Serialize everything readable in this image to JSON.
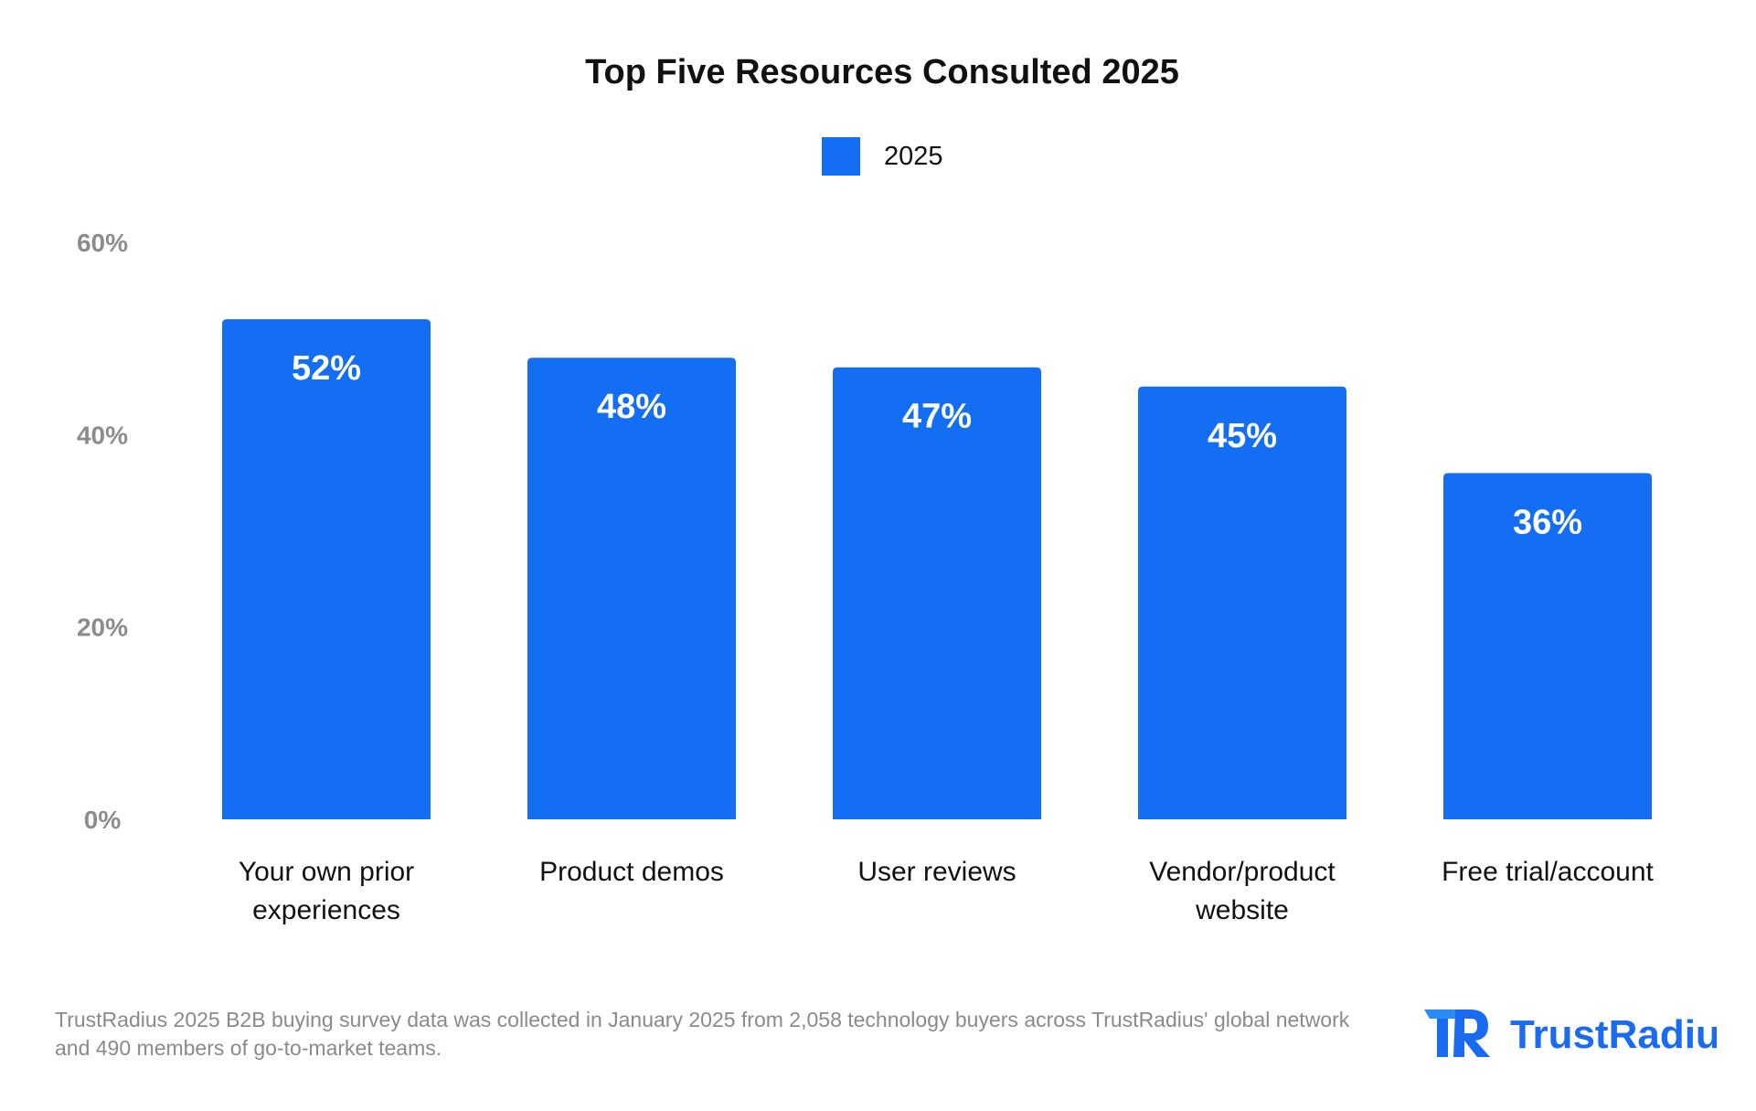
{
  "chart_data": {
    "type": "bar",
    "title": "Top Five Resources Consulted 2025",
    "categories": [
      [
        "Your own prior",
        "experiences"
      ],
      [
        "Product demos"
      ],
      [
        "User reviews"
      ],
      [
        "Vendor/product",
        "website"
      ],
      [
        "Free trial/account"
      ]
    ],
    "series": [
      {
        "name": "2025",
        "values": [
          52,
          48,
          47,
          45,
          36
        ],
        "color": "#136ef3"
      }
    ],
    "data_labels": [
      "52%",
      "48%",
      "47%",
      "45%",
      "36%"
    ],
    "y_ticks": [
      0,
      20,
      40,
      60
    ],
    "y_tick_labels": [
      "0%",
      "20%",
      "40%",
      "60%"
    ],
    "ylim": [
      0,
      60
    ],
    "legend_position": "top-center",
    "grid": false,
    "xlabel": "",
    "ylabel": ""
  },
  "footnote": "TrustRadius 2025 B2B buying survey data was collected in January 2025 from 2,058 technology buyers across TrustRadius' global network and 490 members of go-to-market teams.",
  "logo": {
    "name": "TrustRadius",
    "color": "#1a6bf0"
  }
}
